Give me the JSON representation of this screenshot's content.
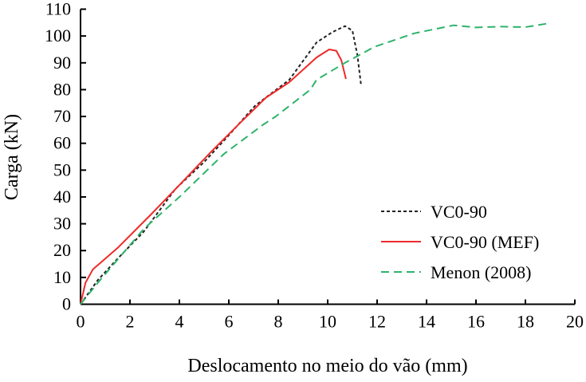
{
  "chart_data": {
    "type": "line",
    "title": "",
    "xlabel": "Deslocamento no meio do vão (mm)",
    "ylabel": "Carga (kN)",
    "xlim": [
      0,
      20
    ],
    "ylim": [
      0,
      110
    ],
    "xticks": [
      0,
      2,
      4,
      6,
      8,
      10,
      12,
      14,
      16,
      18,
      20
    ],
    "yticks": [
      0,
      10,
      20,
      30,
      40,
      50,
      60,
      70,
      80,
      90,
      100,
      110
    ],
    "grid": false,
    "legend_position": "bottom-right",
    "series": [
      {
        "name": "VC0-90",
        "color": "#222222",
        "style": "dotted",
        "x": [
          0,
          0.7,
          1.5,
          2.55,
          3.84,
          5.0,
          5.9,
          7.06,
          8.45,
          9.55,
          10.2,
          10.7,
          11.0,
          11.2,
          11.35
        ],
        "y": [
          0,
          9,
          17,
          27,
          43,
          53,
          62,
          74,
          83.7,
          97.6,
          101.5,
          103.7,
          102,
          93,
          81.6
        ]
      },
      {
        "name": "VC0-90 (MEF)",
        "color": "#ee2a2a",
        "style": "solid",
        "x": [
          0,
          0.2,
          0.5,
          1.5,
          2.8,
          4.06,
          5.3,
          6.5,
          7.5,
          8.45,
          9.55,
          10.06,
          10.35,
          10.55,
          10.74
        ],
        "y": [
          0,
          8,
          13,
          21,
          33,
          45,
          57,
          68,
          77,
          82.8,
          92,
          95,
          94.5,
          91,
          84
        ]
      },
      {
        "name": "Menon (2008)",
        "color": "#2db36b",
        "style": "dashed",
        "x": [
          0,
          0.7,
          2.55,
          4.0,
          5.8,
          7.4,
          7.9,
          9.3,
          9.55,
          10.7,
          11.9,
          13.5,
          15.1,
          16.0,
          17.0,
          18.0,
          19.0
        ],
        "y": [
          0,
          8,
          28,
          40,
          56,
          67,
          70,
          80,
          83.7,
          90,
          96,
          101,
          104,
          103.2,
          103.5,
          103.3,
          104.8
        ]
      }
    ]
  }
}
